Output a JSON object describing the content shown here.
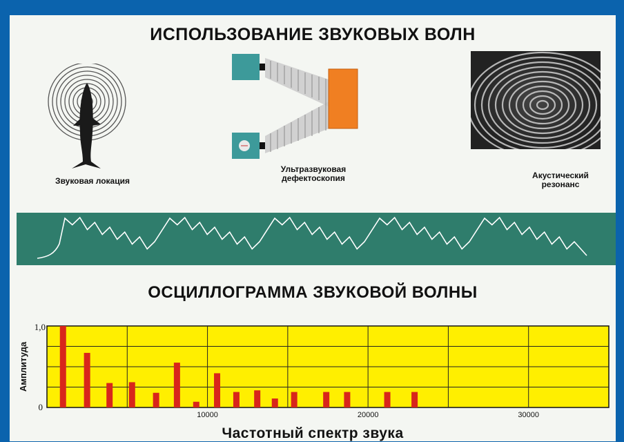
{
  "header": {
    "title": "ИСПОЛЬЗОВАНИЕ ЗВУКОВЫХ ВОЛН"
  },
  "illustrations": [
    {
      "caption": "Звуковая локация",
      "icon": "dolphin-sonar-icon"
    },
    {
      "caption_line1": "Ультразвуковая",
      "caption_line2": "дефектоскопия",
      "icon": "ultrasonic-flaw-detector-icon"
    },
    {
      "caption_line1": "Акустический",
      "caption_line2": "резонанс",
      "icon": "acoustic-resonance-rings-icon"
    }
  ],
  "oscillogram": {
    "title": "ОСЦИЛЛОГРАММА ЗВУКОВОЙ ВОЛНЫ",
    "background": "#2f7d6c",
    "line_color": "#ffffff"
  },
  "chart_data": {
    "type": "bar",
    "title": "Частотный спектр звука",
    "ylabel": "Амплитуда",
    "xlabel": "",
    "xlim": [
      0,
      35000
    ],
    "ylim": [
      0,
      1.0
    ],
    "x_ticks": [
      10000,
      20000,
      30000
    ],
    "x_tick_labels": [
      "10000",
      "20000",
      "30000"
    ],
    "y_tick_labels": [
      "0",
      "1,0"
    ],
    "grid": true,
    "background": "#ffef00",
    "bar_color": "#d8261b",
    "x": [
      1000,
      2500,
      3900,
      5300,
      6800,
      8100,
      9300,
      10600,
      11800,
      13100,
      14200,
      15400,
      17400,
      18700,
      21200,
      22900
    ],
    "values": [
      1.0,
      0.67,
      0.3,
      0.31,
      0.18,
      0.55,
      0.07,
      0.42,
      0.19,
      0.21,
      0.11,
      0.19,
      0.19,
      0.19,
      0.19,
      0.19
    ]
  }
}
